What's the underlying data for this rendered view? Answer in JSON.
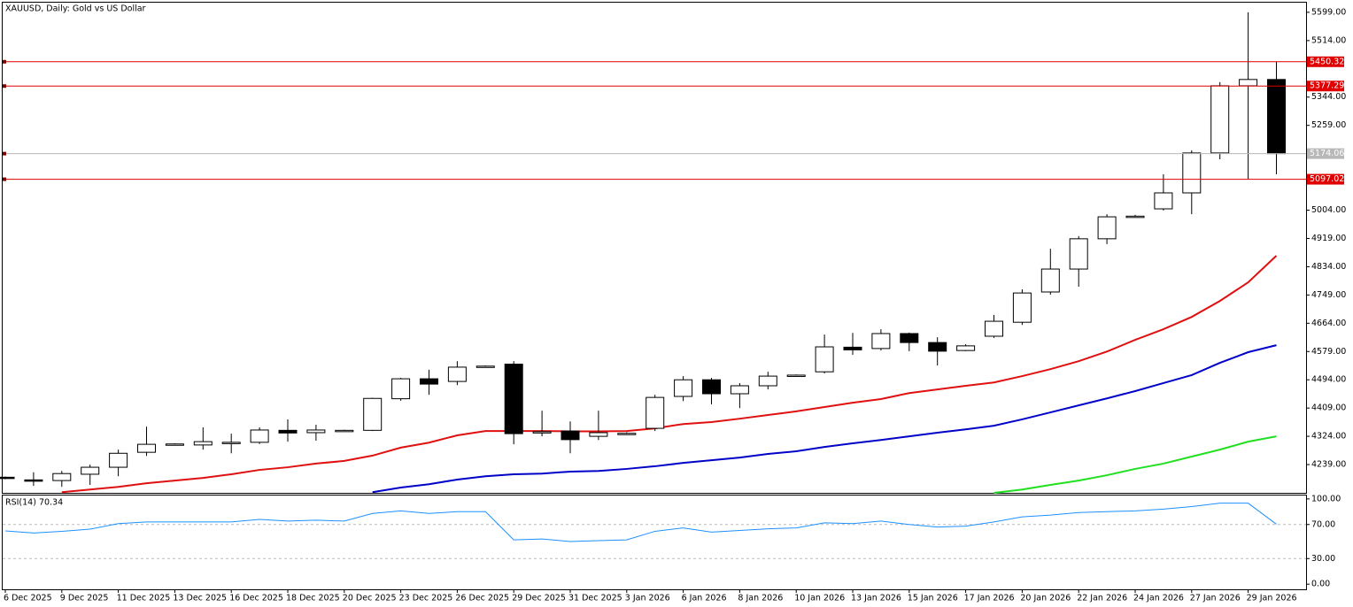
{
  "chart_data": [
    {
      "type": "candlestick",
      "title": "XAUUSD, Daily:  Gold vs US Dollar",
      "categories": [
        "6 Dec 2025",
        null,
        "9 Dec 2025",
        null,
        "11 Dec 2025",
        null,
        "13 Dec 2025",
        null,
        "16 Dec 2025",
        null,
        "18 Dec 2025",
        null,
        "20 Dec 2025",
        null,
        "23 Dec 2025",
        null,
        "26 Dec 2025",
        null,
        "29 Dec 2025",
        null,
        "31 Dec 2025",
        null,
        "3 Jan 2026",
        null,
        "6 Jan 2026",
        null,
        "8 Jan 2026",
        null,
        "10 Jan 2026",
        null,
        "13 Jan 2026",
        null,
        "15 Jan 2026",
        null,
        "17 Jan 2026",
        null,
        "20 Jan 2026",
        null,
        "22 Jan 2026",
        null,
        "24 Jan 2026",
        null,
        "27 Jan 2026",
        null,
        "29 Jan 2026",
        null
      ],
      "open": [
        4201,
        4193,
        4191,
        4210,
        4231,
        4276,
        4299,
        4298,
        4304,
        4306,
        4342,
        4335,
        4340,
        4342,
        4437,
        4497,
        4489,
        4534,
        4541,
        4335,
        4340,
        4324,
        4331,
        4348,
        4444,
        4494,
        4452,
        4476,
        4507,
        4518,
        4592,
        4588,
        4633,
        4606,
        4582,
        4625,
        4667,
        4758,
        4827,
        4918,
        4984,
        5008,
        5056,
        5176,
        5378,
        5397
      ],
      "high": [
        4203,
        4216,
        4220,
        4239,
        4284,
        4353,
        4303,
        4351,
        4332,
        4351,
        4375,
        4359,
        4344,
        4440,
        4500,
        4524,
        4550,
        4537,
        4550,
        4401,
        4369,
        4401,
        4336,
        4449,
        4505,
        4500,
        4484,
        4518,
        4510,
        4630,
        4635,
        4646,
        4636,
        4622,
        4601,
        4689,
        4766,
        4888,
        4926,
        4992,
        4990,
        5112,
        5184,
        5389,
        5599,
        5450
      ],
      "low": [
        4195,
        4175,
        4172,
        4178,
        4204,
        4265,
        4297,
        4284,
        4273,
        4301,
        4308,
        4311,
        4338,
        4340,
        4431,
        4449,
        4478,
        4532,
        4300,
        4324,
        4273,
        4313,
        4328,
        4340,
        4430,
        4420,
        4409,
        4465,
        4505,
        4513,
        4569,
        4582,
        4580,
        4537,
        4580,
        4620,
        4659,
        4750,
        4774,
        4902,
        4982,
        5003,
        4992,
        5157,
        5098,
        5112
      ],
      "close": [
        4198,
        4191,
        4212,
        4231,
        4273,
        4300,
        4301,
        4308,
        4306,
        4343,
        4334,
        4343,
        4342,
        4438,
        4497,
        4481,
        4532,
        4535,
        4332,
        4338,
        4314,
        4335,
        4333,
        4441,
        4494,
        4452,
        4476,
        4505,
        4508,
        4593,
        4584,
        4633,
        4606,
        4580,
        4596,
        4670,
        4755,
        4827,
        4918,
        4984,
        4986,
        5056,
        5176,
        5378,
        5397,
        5174.06
      ],
      "series": [
        {
          "color": "#e01010",
          "values": [
            null,
            null,
            4156,
            4164,
            4172,
            4183,
            4191,
            4199,
            4210,
            4223,
            4231,
            4242,
            4250,
            4266,
            4290,
            4305,
            4327,
            4340,
            4340,
            4340,
            4339,
            4339,
            4340,
            4348,
            4361,
            4367,
            4377,
            4388,
            4399,
            4412,
            4425,
            4436,
            4454,
            4465,
            4476,
            4486,
            4505,
            4526,
            4550,
            4579,
            4614,
            4646,
            4683,
            4731,
            4787,
            4867
          ]
        },
        {
          "color": "#0000c8",
          "values": [
            null,
            null,
            null,
            null,
            null,
            null,
            null,
            null,
            null,
            null,
            null,
            null,
            null,
            4156,
            4170,
            4180,
            4194,
            4204,
            4210,
            4212,
            4218,
            4220,
            4226,
            4234,
            4244,
            4252,
            4260,
            4271,
            4279,
            4292,
            4303,
            4313,
            4324,
            4335,
            4345,
            4356,
            4375,
            4396,
            4417,
            4438,
            4460,
            4484,
            4508,
            4545,
            4577,
            4598
          ]
        },
        {
          "color": "#20e020",
          "values": [
            null,
            null,
            null,
            null,
            null,
            null,
            null,
            null,
            null,
            null,
            null,
            null,
            null,
            null,
            null,
            null,
            null,
            null,
            null,
            null,
            null,
            null,
            null,
            null,
            null,
            null,
            null,
            null,
            null,
            null,
            null,
            null,
            null,
            null,
            null,
            4154,
            4164,
            4178,
            4191,
            4207,
            4226,
            4242,
            4263,
            4284,
            4308,
            4324
          ]
        }
      ],
      "hlines": [
        {
          "value": 5450.32,
          "color": "#e00000"
        },
        {
          "value": 5377.29,
          "color": "#e00000"
        },
        {
          "value": 5174.06,
          "color": "#b8b8b8"
        },
        {
          "value": 5097.02,
          "color": "#e00000"
        }
      ],
      "ylim": [
        4154,
        5628
      ],
      "yticks": [
        {
          "value": 5599,
          "label": "5599.00"
        },
        {
          "value": 5514,
          "label": "5514.00"
        },
        {
          "value": 5344,
          "label": "5344.00"
        },
        {
          "value": 5259,
          "label": "5259.00"
        },
        {
          "value": 5004,
          "label": "5004.00"
        },
        {
          "value": 4919,
          "label": "4919.00"
        },
        {
          "value": 4834,
          "label": "4834.00"
        },
        {
          "value": 4749,
          "label": "4749.00"
        },
        {
          "value": 4664,
          "label": "4664.00"
        },
        {
          "value": 4579,
          "label": "4579.00"
        },
        {
          "value": 4494,
          "label": "4494.00"
        },
        {
          "value": 4409,
          "label": "4409.00"
        },
        {
          "value": 4324,
          "label": "4324.00"
        },
        {
          "value": 4239,
          "label": "4239.00"
        }
      ]
    },
    {
      "type": "line",
      "title": "RSI(14) 70.34",
      "color": "#1e90ff",
      "values": [
        62.5,
        60,
        62,
        64.6,
        71,
        73,
        73,
        73,
        73,
        76,
        74,
        75,
        74,
        83,
        86,
        83,
        85,
        85,
        52,
        53,
        50,
        51,
        52,
        62,
        66,
        61,
        63,
        65,
        66,
        72,
        71,
        74,
        70,
        67,
        68,
        73,
        79,
        81,
        84,
        85,
        86,
        88,
        91,
        95,
        95,
        70.34
      ],
      "levels": [
        70,
        30
      ],
      "ylim": [
        -5,
        104
      ],
      "yticks": [
        {
          "value": 100,
          "label": "100.00"
        },
        {
          "value": 70,
          "label": "70.00"
        },
        {
          "value": 30,
          "label": "30.00"
        },
        {
          "value": 0,
          "label": "0.00"
        }
      ]
    }
  ]
}
